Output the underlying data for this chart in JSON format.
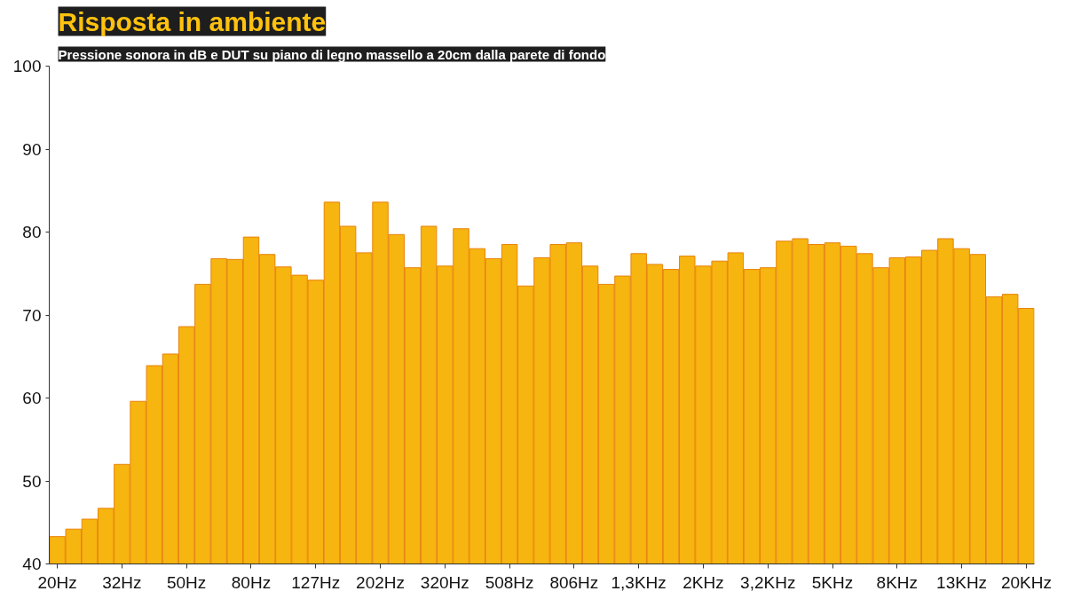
{
  "chart_data": {
    "type": "bar",
    "title": "Risposta in ambiente",
    "subtitle": "Pressione sonora in dB e DUT su piano di legno massello a 20cm dalla parete di fondo",
    "categories": [
      "20Hz",
      null,
      null,
      null,
      "32Hz",
      null,
      null,
      null,
      "50Hz",
      null,
      null,
      null,
      "80Hz",
      null,
      null,
      null,
      "127Hz",
      null,
      null,
      null,
      "202Hz",
      null,
      null,
      null,
      "320Hz",
      null,
      null,
      null,
      "508Hz",
      null,
      null,
      null,
      "806Hz",
      null,
      null,
      null,
      "1,3KHz",
      null,
      null,
      null,
      "2KHz",
      null,
      null,
      null,
      "3,2KHz",
      null,
      null,
      null,
      "5KHz",
      null,
      null,
      null,
      "8KHz",
      null,
      null,
      null,
      "13KHz",
      null,
      null,
      null,
      "20KHz"
    ],
    "values": [
      43.3,
      44.2,
      45.4,
      46.7,
      52.0,
      59.6,
      63.9,
      65.3,
      68.6,
      73.7,
      76.8,
      76.7,
      79.4,
      77.3,
      75.8,
      74.8,
      74.2,
      83.6,
      80.7,
      77.5,
      83.6,
      79.7,
      75.7,
      80.7,
      75.9,
      80.4,
      78.0,
      76.8,
      78.5,
      73.5,
      76.9,
      78.5,
      78.7,
      75.9,
      73.7,
      74.7,
      77.4,
      76.1,
      75.5,
      77.1,
      75.9,
      76.5,
      77.5,
      75.5,
      75.7,
      78.9,
      79.2,
      78.5,
      78.7,
      78.3,
      77.4,
      75.7,
      76.9,
      77.0,
      77.8,
      79.2,
      78.0,
      77.3,
      72.2,
      72.5,
      70.8
    ],
    "color": "#f7b50f",
    "ylim": [
      40,
      100
    ],
    "yticks": [
      40,
      50,
      60,
      70,
      80,
      90,
      100
    ],
    "grid": false
  }
}
